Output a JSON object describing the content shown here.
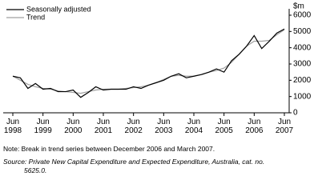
{
  "chart_data": {
    "type": "line",
    "y_unit": "$m",
    "categories": [
      "Jun 1998",
      null,
      null,
      null,
      "Jun 1999",
      null,
      null,
      null,
      "Jun 2000",
      null,
      null,
      null,
      "Jun 2001",
      null,
      null,
      null,
      "Jun 2002",
      null,
      null,
      null,
      "Jun 2003",
      null,
      null,
      null,
      "Jun 2004",
      null,
      null,
      null,
      "Jun 2005",
      null,
      null,
      null,
      "Jun 2006",
      null,
      null,
      null,
      "Jun 2007"
    ],
    "series": [
      {
        "name": "Seasonally adjusted",
        "color": "#000000",
        "values": [
          2250,
          2150,
          1500,
          1800,
          1450,
          1500,
          1300,
          1300,
          1400,
          950,
          1250,
          1600,
          1400,
          1450,
          1450,
          1450,
          1600,
          1500,
          1700,
          1850,
          2000,
          2250,
          2400,
          2150,
          2250,
          2350,
          2500,
          2700,
          2500,
          3200,
          3600,
          4100,
          4750,
          3950,
          4400,
          4900,
          5150
        ]
      },
      {
        "name": "Trend",
        "color": "#a0a0a0",
        "values": [
          2250,
          2000,
          1750,
          1600,
          1500,
          1450,
          1350,
          1300,
          1250,
          1200,
          1300,
          1400,
          1450,
          1450,
          1450,
          1500,
          1550,
          1600,
          1700,
          1850,
          2050,
          2250,
          2300,
          2250,
          2250,
          2350,
          2500,
          2600,
          2750,
          3100,
          3600,
          4100,
          4400,
          4400,
          4450,
          4800,
          5100
        ]
      }
    ],
    "ylim": [
      0,
      6000
    ],
    "yticks": [
      0,
      1000,
      2000,
      3000,
      4000,
      5000,
      6000
    ],
    "legend": "top-left",
    "note": "Note: Break in trend series between December 2006 and March 2007.",
    "source_label": "Source:",
    "source": "Private New Capital Expenditure and Expected Expenditure, Australia, cat. no. 5625.0."
  }
}
